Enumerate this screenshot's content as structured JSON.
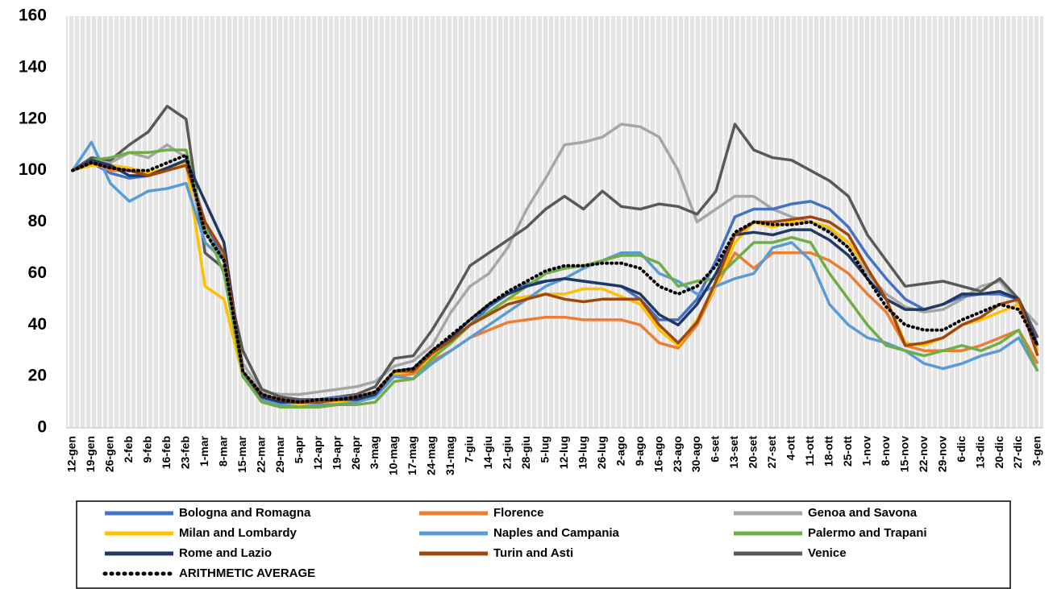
{
  "chart_data": {
    "type": "line",
    "categories": [
      "12-gen",
      "19-gen",
      "26-gen",
      "2-feb",
      "9-feb",
      "16-feb",
      "23-feb",
      "1-mar",
      "8-mar",
      "15-mar",
      "22-mar",
      "29-mar",
      "5-apr",
      "12-apr",
      "19-apr",
      "26-apr",
      "3-mag",
      "10-mag",
      "17-mag",
      "24-mag",
      "31-mag",
      "7-giu",
      "14-giu",
      "21-giu",
      "28-giu",
      "5-lug",
      "12-lug",
      "19-lug",
      "26-lug",
      "2-ago",
      "9-ago",
      "16-ago",
      "23-ago",
      "30-ago",
      "6-set",
      "13-set",
      "20-set",
      "27-set",
      "4-ott",
      "11-ott",
      "18-ott",
      "25-ott",
      "1-nov",
      "8-nov",
      "15-nov",
      "22-nov",
      "29-nov",
      "6-dic",
      "13-dic",
      "20-dic",
      "27-dic",
      "3-gen"
    ],
    "series": [
      {
        "name": "Genoa and Savona",
        "color": "#a6a6a6",
        "values": [
          100,
          104,
          103,
          107,
          105,
          110,
          105,
          72,
          65,
          25,
          14,
          13,
          13,
          14,
          15,
          16,
          18,
          24,
          26,
          32,
          45,
          55,
          60,
          70,
          85,
          97,
          110,
          111,
          113,
          118,
          117,
          113,
          100,
          80,
          85,
          90,
          90,
          85,
          82,
          80,
          77,
          70,
          60,
          52,
          47,
          45,
          46,
          50,
          55,
          57,
          48,
          40
        ]
      },
      {
        "name": "Venice",
        "color": "#595959",
        "values": [
          100,
          105,
          104,
          110,
          115,
          125,
          120,
          68,
          62,
          30,
          15,
          12,
          11,
          11,
          12,
          13,
          16,
          27,
          28,
          38,
          50,
          63,
          68,
          73,
          78,
          85,
          90,
          85,
          92,
          86,
          85,
          87,
          86,
          83,
          92,
          118,
          108,
          105,
          104,
          100,
          96,
          90,
          75,
          65,
          55,
          56,
          57,
          55,
          53,
          58,
          50,
          35
        ]
      },
      {
        "name": "Bologna and Romagna",
        "color": "#4472c4",
        "values": [
          100,
          103,
          99,
          97,
          98,
          101,
          104,
          80,
          65,
          20,
          12,
          10,
          10,
          11,
          12,
          12,
          14,
          21,
          22,
          30,
          34,
          40,
          47,
          52,
          56,
          57,
          58,
          57,
          56,
          55,
          50,
          42,
          42,
          50,
          65,
          82,
          85,
          85,
          87,
          88,
          85,
          78,
          67,
          58,
          50,
          46,
          48,
          51,
          52,
          52,
          50,
          30
        ]
      },
      {
        "name": "Florence",
        "color": "#ed7d31",
        "values": [
          100,
          103,
          100,
          100,
          98,
          100,
          103,
          80,
          68,
          20,
          12,
          10,
          9,
          10,
          10,
          11,
          13,
          20,
          21,
          26,
          30,
          35,
          38,
          41,
          42,
          43,
          43,
          42,
          42,
          42,
          40,
          33,
          31,
          40,
          55,
          68,
          62,
          68,
          68,
          68,
          65,
          60,
          52,
          45,
          32,
          30,
          30,
          30,
          32,
          35,
          38,
          25
        ]
      },
      {
        "name": "Milan and Lombardy",
        "color": "#ffc000",
        "values": [
          100,
          102,
          102,
          101,
          99,
          101,
          103,
          55,
          50,
          20,
          12,
          9,
          9,
          9,
          10,
          11,
          13,
          21,
          22,
          28,
          33,
          40,
          45,
          50,
          51,
          52,
          52,
          54,
          54,
          51,
          48,
          38,
          32,
          42,
          55,
          72,
          80,
          78,
          80,
          80,
          78,
          72,
          62,
          50,
          33,
          32,
          35,
          40,
          42,
          45,
          48,
          30
        ]
      },
      {
        "name": "Naples and Campania",
        "color": "#5b9bd5",
        "values": [
          100,
          111,
          95,
          88,
          92,
          93,
          95,
          72,
          65,
          20,
          11,
          9,
          8,
          9,
          9,
          10,
          12,
          20,
          19,
          25,
          30,
          35,
          40,
          45,
          50,
          55,
          58,
          62,
          65,
          68,
          68,
          60,
          57,
          52,
          55,
          58,
          60,
          70,
          72,
          65,
          48,
          40,
          35,
          33,
          30,
          25,
          23,
          25,
          28,
          30,
          35,
          22
        ]
      },
      {
        "name": "Palermo and Trapani",
        "color": "#70ad47",
        "values": [
          100,
          104,
          105,
          107,
          107,
          108,
          108,
          78,
          60,
          20,
          10,
          8,
          8,
          8,
          9,
          9,
          10,
          18,
          19,
          27,
          33,
          40,
          45,
          50,
          55,
          60,
          62,
          63,
          65,
          67,
          67,
          64,
          55,
          57,
          58,
          65,
          72,
          72,
          74,
          72,
          60,
          50,
          40,
          32,
          30,
          28,
          30,
          32,
          30,
          33,
          38,
          22
        ]
      },
      {
        "name": "Rome and Lazio",
        "color": "#203864",
        "values": [
          100,
          104,
          102,
          98,
          98,
          101,
          104,
          88,
          72,
          22,
          12,
          10,
          10,
          10,
          11,
          11,
          13,
          22,
          23,
          30,
          35,
          42,
          48,
          52,
          55,
          57,
          58,
          57,
          56,
          55,
          52,
          44,
          40,
          48,
          60,
          75,
          76,
          75,
          77,
          77,
          73,
          67,
          58,
          50,
          46,
          46,
          48,
          52,
          52,
          53,
          50,
          32
        ]
      },
      {
        "name": "Turin and Asti",
        "color": "#9e480e",
        "values": [
          100,
          103,
          101,
          100,
          98,
          100,
          102,
          80,
          68,
          22,
          13,
          11,
          10,
          10,
          11,
          12,
          14,
          22,
          22,
          29,
          34,
          40,
          44,
          48,
          50,
          52,
          50,
          49,
          50,
          50,
          50,
          40,
          33,
          41,
          57,
          75,
          80,
          80,
          81,
          82,
          80,
          75,
          62,
          50,
          32,
          33,
          35,
          40,
          43,
          48,
          50,
          28
        ]
      },
      {
        "name": "ARITHMETIC AVERAGE",
        "color": "#000000",
        "line_style": "dotted",
        "values": [
          100,
          103,
          101,
          100,
          100,
          103,
          106,
          76,
          65,
          22,
          13,
          11,
          10,
          11,
          11,
          12,
          14,
          22,
          23,
          30,
          36,
          42,
          48,
          53,
          57,
          61,
          63,
          63,
          64,
          64,
          62,
          55,
          52,
          55,
          63,
          76,
          80,
          79,
          79,
          80,
          76,
          70,
          58,
          47,
          40,
          38,
          38,
          42,
          45,
          48,
          46,
          32
        ]
      }
    ],
    "legend_order": [
      "Bologna and Romagna",
      "Florence",
      "Genoa and Savona",
      "Milan and Lombardy",
      "Naples and Campania",
      "Palermo and Trapani",
      "Rome and Lazio",
      "Turin and Asti",
      "Venice",
      "ARITHMETIC AVERAGE"
    ],
    "ylim": [
      0,
      160
    ],
    "yticks": [
      0,
      20,
      40,
      60,
      80,
      100,
      120,
      140,
      160
    ],
    "grid": false,
    "legend": "bottom"
  }
}
